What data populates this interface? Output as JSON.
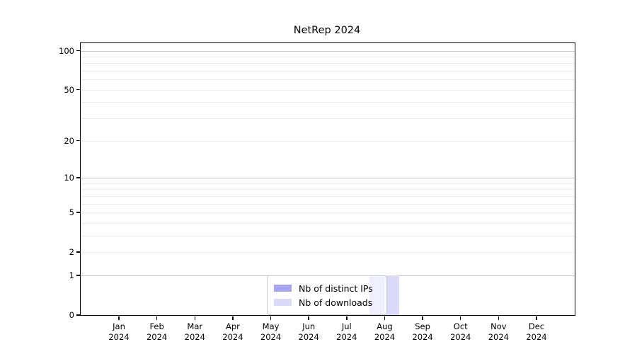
{
  "chart_data": {
    "type": "bar",
    "title": "NetRep 2024",
    "categories": [
      "Jan",
      "Feb",
      "Mar",
      "Apr",
      "May",
      "Jun",
      "Jul",
      "Aug",
      "Sep",
      "Oct",
      "Nov",
      "Dec"
    ],
    "category_year": "2024",
    "series": [
      {
        "name": "Nb of distinct IPs",
        "color": "#a6a6f0",
        "values": [
          0,
          0,
          0,
          0,
          0,
          0,
          0,
          1,
          0,
          0,
          0,
          0
        ]
      },
      {
        "name": "Nb of downloads",
        "color": "#dadaf8",
        "values": [
          0,
          0,
          0,
          0,
          0,
          0,
          0,
          1,
          0,
          0,
          0,
          0
        ]
      }
    ],
    "yscale": "log1p",
    "ylim": [
      0,
      114
    ],
    "y_ticks": [
      0,
      1,
      2,
      5,
      10,
      20,
      50,
      100
    ],
    "y_major_gridlines": [
      1,
      10,
      100
    ],
    "y_minor_gridlines": [
      2,
      3,
      4,
      5,
      6,
      7,
      8,
      9,
      20,
      30,
      40,
      50,
      60,
      70,
      80,
      90
    ],
    "grid": true,
    "legend_position": "bottom-center",
    "colors": {
      "axis_frame": "#000000",
      "grid_major": "#c8c8c8",
      "grid_minor": "#ececec",
      "text": "#000000"
    }
  }
}
